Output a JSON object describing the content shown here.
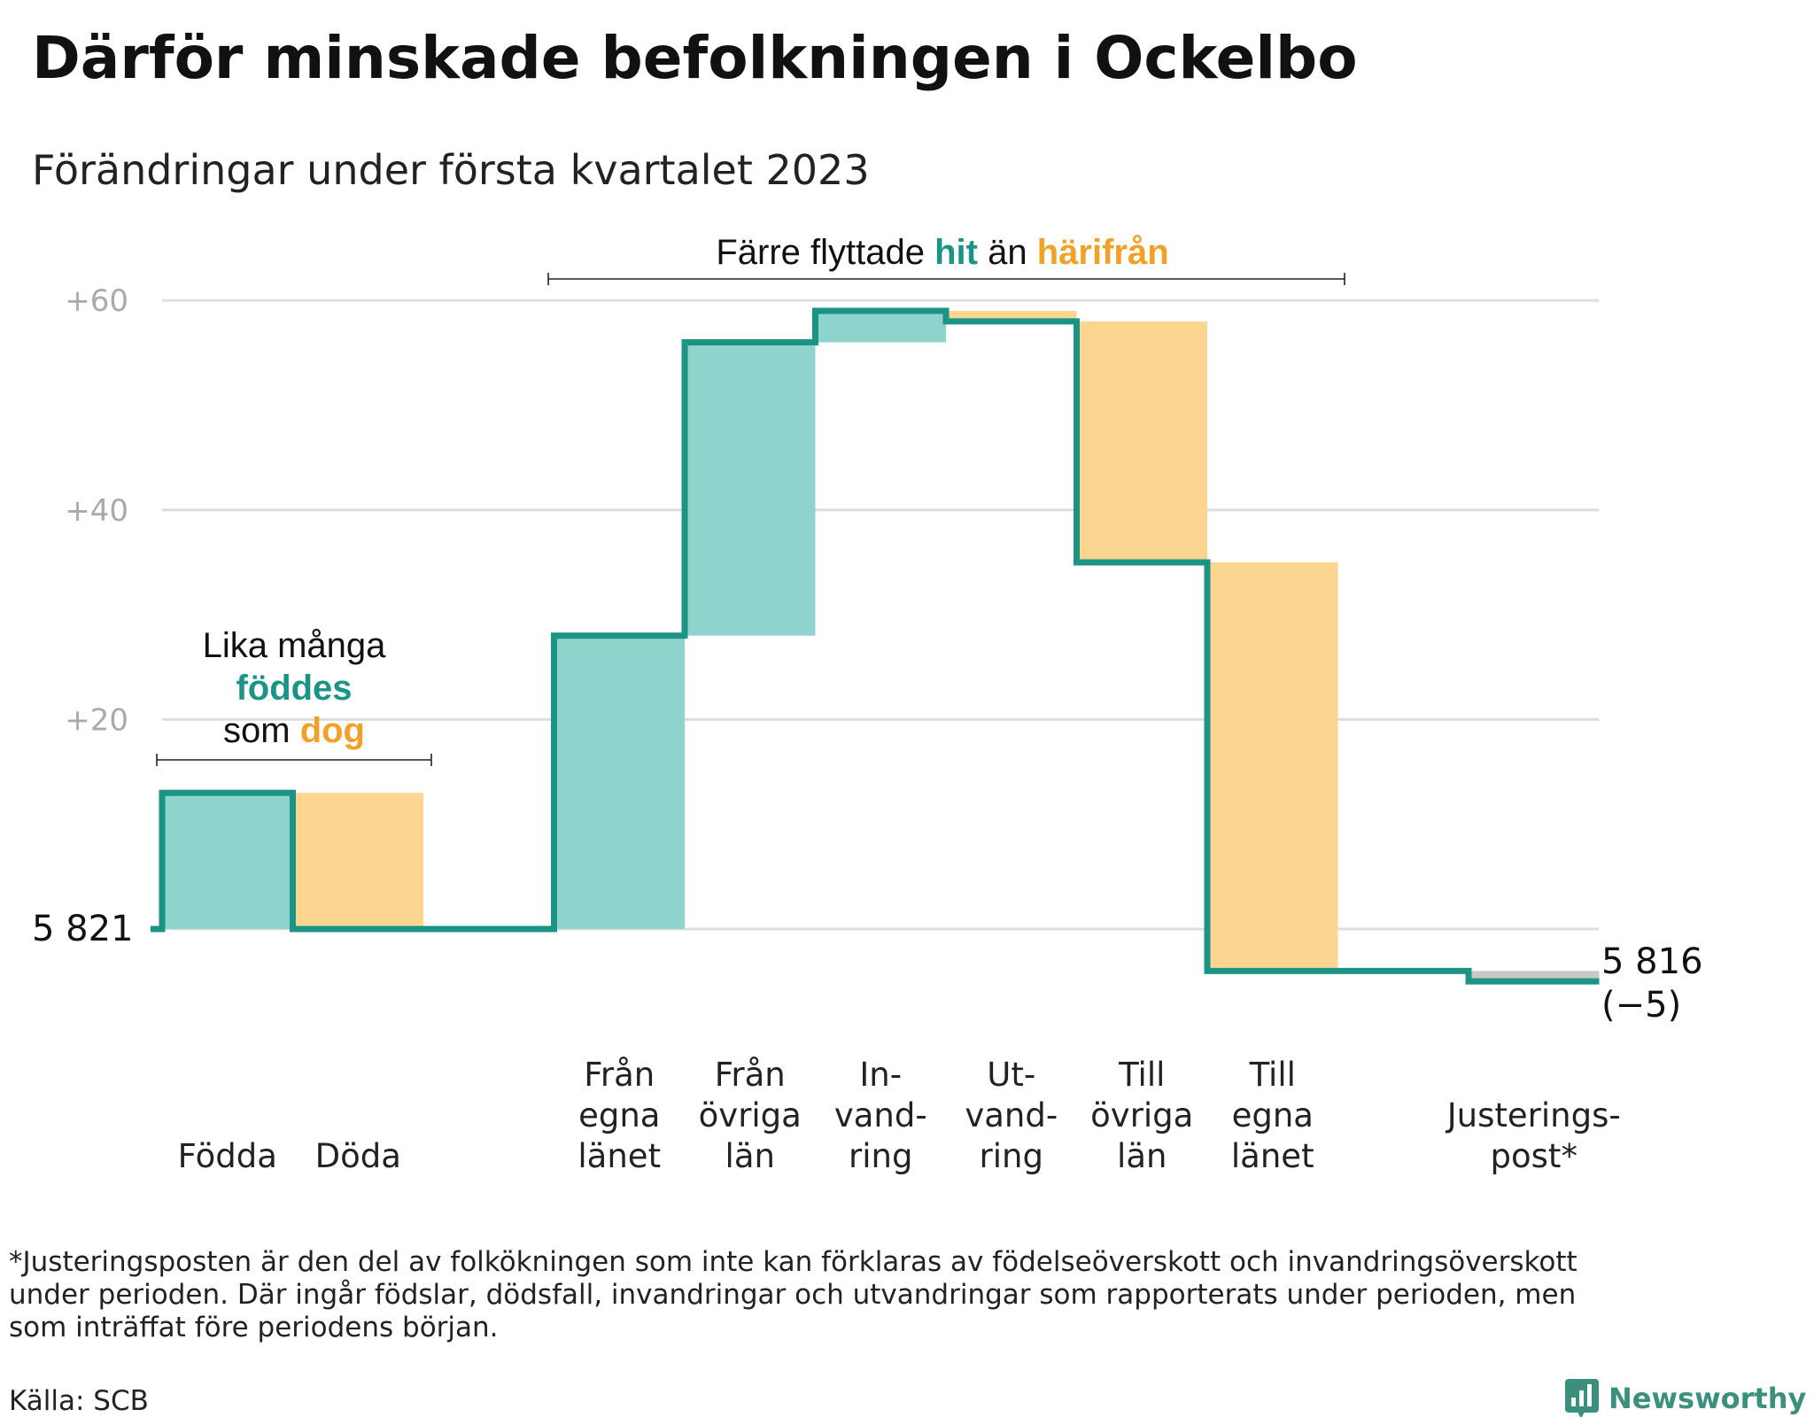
{
  "title": "Därför minskade befolkningen i Ockelbo",
  "subtitle": "Förändringar under första kvartalet 2023",
  "colors": {
    "increase_fill": "#8ed4cc",
    "decrease_fill": "#fcd690",
    "adjustment_fill": "#c8c8c8",
    "line": "#1c9485",
    "accent_teal": "#1c9485",
    "accent_orange": "#f0a128",
    "grid": "#dddddd",
    "tick": "#aaaaaa"
  },
  "annotations": {
    "births_deaths": {
      "line1": "Lika många",
      "word_teal": "föddes",
      "prefix3": "som",
      "word_orange": "dog"
    },
    "migration": {
      "prefix": "Färre flyttade",
      "word_teal": "hit",
      "middle": "än",
      "word_orange": "härifrån"
    }
  },
  "chart_data": {
    "type": "waterfall",
    "start_value": 5821,
    "start_label": "5 821",
    "end_value": 5816,
    "end_label": "5 816",
    "end_change_label": "(−5)",
    "ylim": [
      -5,
      60
    ],
    "yticks": [
      {
        "value": 20,
        "label": "+20"
      },
      {
        "value": 40,
        "label": "+40"
      },
      {
        "value": 60,
        "label": "+60"
      }
    ],
    "steps": [
      {
        "label_lines": [
          "Födda"
        ],
        "delta": 13,
        "kind": "increase"
      },
      {
        "label_lines": [
          "Döda"
        ],
        "delta": -13,
        "kind": "decrease"
      },
      {
        "label_lines": [
          ""
        ],
        "delta": 0,
        "kind": "gap"
      },
      {
        "label_lines": [
          "Från",
          "egna",
          "länet"
        ],
        "delta": 28,
        "kind": "increase"
      },
      {
        "label_lines": [
          "Från",
          "övriga",
          "län"
        ],
        "delta": 28,
        "kind": "increase"
      },
      {
        "label_lines": [
          "In-",
          "vand-",
          "ring"
        ],
        "delta": 3,
        "kind": "increase"
      },
      {
        "label_lines": [
          "Ut-",
          "vand-",
          "ring"
        ],
        "delta": -1,
        "kind": "decrease"
      },
      {
        "label_lines": [
          "Till",
          "övriga",
          "län"
        ],
        "delta": -23,
        "kind": "decrease"
      },
      {
        "label_lines": [
          "Till",
          "egna",
          "länet"
        ],
        "delta": -39,
        "kind": "decrease"
      },
      {
        "label_lines": [
          ""
        ],
        "delta": 0,
        "kind": "gap"
      },
      {
        "label_lines": [
          "Justerings-",
          "post*"
        ],
        "delta": -1,
        "kind": "adjustment"
      }
    ]
  },
  "footnote": [
    "*Justeringsposten är den del av folkökningen som inte kan förklaras av födelseöverskott och invandringsöverskott",
    "under perioden. Där ingår födslar, dödsfall, invandringar och utvandringar som rapporterats under perioden, men",
    "som inträffat före periodens början."
  ],
  "source": "Källa: SCB",
  "brand": "Newsworthy"
}
